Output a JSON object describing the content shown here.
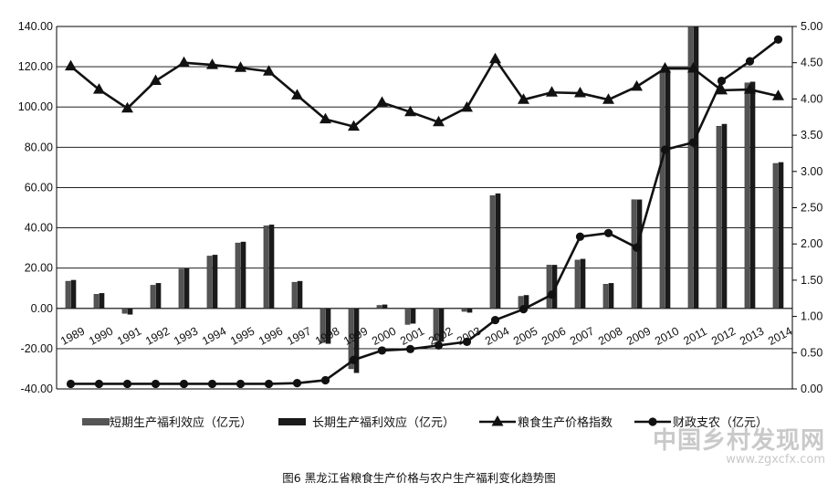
{
  "chart_data": {
    "type": "bar",
    "categories": [
      "1989",
      "1990",
      "1991",
      "1992",
      "1993",
      "1994",
      "1995",
      "1996",
      "1997",
      "1998",
      "1999",
      "2000",
      "2001",
      "2002",
      "2003",
      "2004",
      "2005",
      "2006",
      "2007",
      "2008",
      "2009",
      "2010",
      "2011",
      "2012",
      "2013",
      "2014"
    ],
    "series": [
      {
        "name": "短期生产福利效应（亿元）",
        "type": "bar",
        "axis": "left",
        "values": [
          13.5,
          7,
          -2.5,
          11.5,
          19.5,
          26,
          32.5,
          41,
          13,
          -17,
          -30,
          1.5,
          -8,
          -16,
          -1.5,
          56,
          6,
          21.5,
          24,
          12,
          54,
          117,
          140,
          90.5,
          112,
          72
        ]
      },
      {
        "name": "长期生产福利效应（亿元）",
        "type": "bar",
        "axis": "left",
        "values": [
          14,
          7.5,
          -3,
          12.5,
          20,
          26.5,
          33,
          41.5,
          13.5,
          -17.5,
          -32,
          1.8,
          -7.5,
          -16.5,
          -2,
          57,
          6.5,
          21.5,
          24.5,
          12.5,
          54,
          118,
          140,
          91.5,
          112.5,
          72.5
        ]
      },
      {
        "name": "粮食生产价格指数",
        "type": "line",
        "marker": "triangle",
        "axis": "right",
        "values": [
          4.45,
          4.13,
          3.87,
          4.25,
          4.5,
          4.47,
          4.43,
          4.38,
          4.05,
          3.72,
          3.62,
          3.95,
          3.82,
          3.68,
          3.88,
          4.55,
          3.99,
          4.09,
          4.08,
          3.99,
          4.17,
          4.42,
          4.42,
          4.12,
          4.13,
          4.04
        ]
      },
      {
        "name": "财政支农（亿元）",
        "type": "line",
        "marker": "circle",
        "axis": "right",
        "values": [
          0.07,
          0.07,
          0.07,
          0.07,
          0.07,
          0.07,
          0.07,
          0.07,
          0.08,
          0.12,
          0.4,
          0.53,
          0.55,
          0.6,
          0.65,
          0.95,
          1.1,
          1.3,
          2.1,
          2.15,
          1.95,
          3.3,
          3.4,
          4.25,
          4.52,
          4.82
        ]
      }
    ],
    "y_left": {
      "min": -40,
      "max": 140,
      "step": 20,
      "ticks": [
        "-40.00",
        "-20.00",
        "0.00",
        "20.00",
        "40.00",
        "60.00",
        "80.00",
        "100.00",
        "120.00",
        "140.00"
      ]
    },
    "y_right": {
      "min": 0,
      "max": 5,
      "step": 0.5,
      "ticks": [
        "0.00",
        "0.50",
        "1.00",
        "1.50",
        "2.00",
        "2.50",
        "3.00",
        "3.50",
        "4.00",
        "4.50",
        "5.00"
      ]
    },
    "grid": true,
    "legend_position": "bottom",
    "title": "",
    "xlabel": "",
    "ylabel": ""
  },
  "caption": "图6   黑龙江省粮食生产价格与农户生产福利变化趋势图",
  "watermark": {
    "text": "中国乡村发现网",
    "url": "www.zgxcfx.com"
  },
  "colors": {
    "short_bar": "#555555",
    "long_bar": "#1a1a1a",
    "line": "#111111",
    "grid": "#000000"
  }
}
